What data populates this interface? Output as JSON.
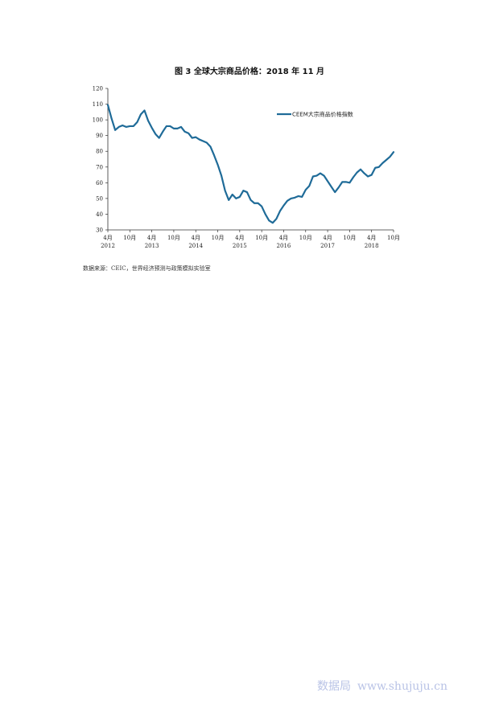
{
  "chart_data": {
    "type": "line",
    "title": "图 3 全球大宗商品价格：2018 年 11 月",
    "xlabel": "",
    "ylabel": "",
    "ylim": [
      30,
      120
    ],
    "yticks": [
      30,
      40,
      50,
      60,
      70,
      80,
      90,
      100,
      110,
      120
    ],
    "grid": false,
    "legend_position": "top-right",
    "xtick_labels": [
      {
        "month": "4月",
        "year": "2012",
        "index": 0
      },
      {
        "month": "10月",
        "year": "",
        "index": 6
      },
      {
        "month": "4月",
        "year": "2013",
        "index": 12
      },
      {
        "month": "10月",
        "year": "",
        "index": 18
      },
      {
        "month": "4月",
        "year": "2014",
        "index": 24
      },
      {
        "month": "10月",
        "year": "",
        "index": 30
      },
      {
        "month": "4月",
        "year": "2015",
        "index": 36
      },
      {
        "month": "10月",
        "year": "",
        "index": 42
      },
      {
        "month": "4月",
        "year": "2016",
        "index": 48
      },
      {
        "month": "10月",
        "year": "",
        "index": 54
      },
      {
        "month": "4月",
        "year": "2017",
        "index": 60
      },
      {
        "month": "10月",
        "year": "",
        "index": 66
      },
      {
        "month": "4月",
        "year": "2018",
        "index": 72
      },
      {
        "month": "10月",
        "year": "",
        "index": 78
      }
    ],
    "series": [
      {
        "name": "CEEM大宗商品价格指数",
        "color": "#1f6b98",
        "values": [
          109.5,
          101,
          93.5,
          95.5,
          96.5,
          95.5,
          96,
          96,
          98.5,
          103.5,
          106,
          99.5,
          95,
          91,
          88.5,
          92.5,
          96,
          96,
          94.5,
          94.5,
          95.5,
          92.5,
          91.5,
          88.5,
          89,
          87.5,
          86.5,
          85.5,
          83,
          77.5,
          71.5,
          64.5,
          55,
          49,
          52.5,
          50,
          51,
          55,
          54,
          49,
          47,
          47,
          45,
          40,
          36,
          34.5,
          37,
          42,
          45.5,
          48.5,
          50,
          50.5,
          51.5,
          51,
          55.5,
          58,
          64,
          64.5,
          66,
          64.5,
          61,
          57.5,
          54,
          57,
          60.5,
          60.5,
          60,
          63.5,
          66.5,
          68.5,
          66,
          64,
          65,
          69.5,
          70,
          72.5,
          74.5,
          76.5,
          79.5
        ]
      }
    ]
  },
  "source_text": "数据来源：CEIC，世界经济预测与政策模拟实验室",
  "watermark": {
    "cn": "数据局",
    "url": "www.shujuju.cn"
  }
}
